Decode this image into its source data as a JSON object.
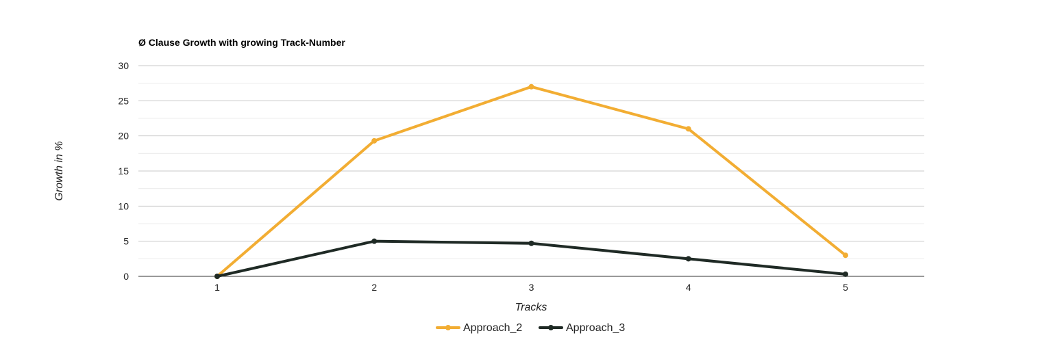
{
  "chart_data": {
    "type": "line",
    "title": "Ø Clause Growth with growing Track-Number",
    "xlabel": "Tracks",
    "ylabel": "Growth in %",
    "categories": [
      "1",
      "2",
      "3",
      "4",
      "5"
    ],
    "ylim": [
      0,
      30
    ],
    "yticks": [
      "0",
      "5",
      "10",
      "15",
      "20",
      "25",
      "30"
    ],
    "grid": true,
    "minor_grid": true,
    "legend_position": "bottom",
    "series": [
      {
        "name": "Approach_2",
        "color": "#f2ad33",
        "values": [
          0,
          19.3,
          27,
          21,
          3
        ]
      },
      {
        "name": "Approach_3",
        "color": "#1f2a25",
        "values": [
          0,
          5,
          4.7,
          2.5,
          0.3
        ]
      }
    ]
  }
}
